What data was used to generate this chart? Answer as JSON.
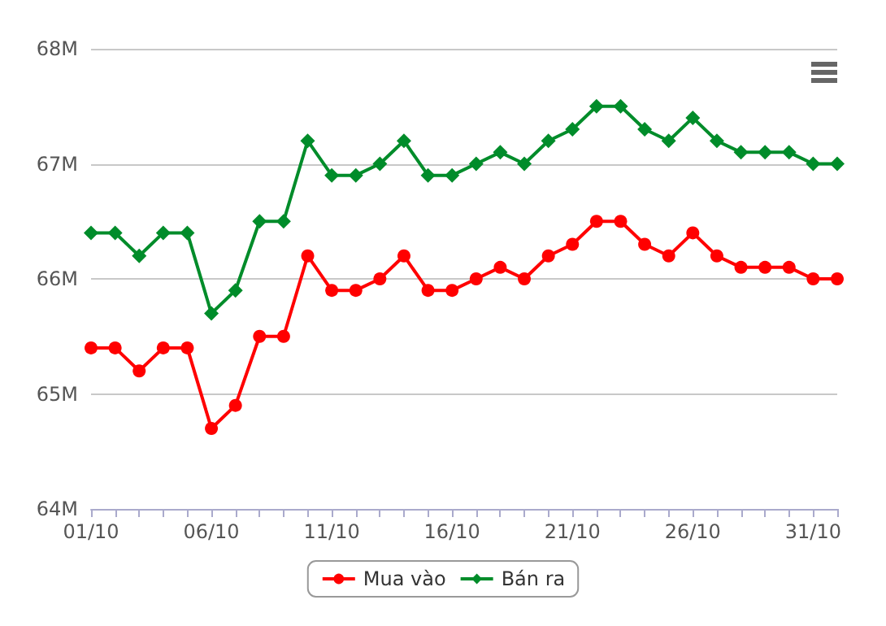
{
  "chart_data": {
    "type": "line",
    "categories": [
      "01/10",
      null,
      null,
      null,
      null,
      "06/10",
      null,
      null,
      null,
      null,
      "11/10",
      null,
      null,
      null,
      null,
      "16/10",
      null,
      null,
      null,
      null,
      "21/10",
      null,
      null,
      null,
      null,
      "26/10",
      null,
      null,
      null,
      null,
      "31/10",
      null
    ],
    "series": [
      {
        "name": "Mua vào",
        "color": "#ff0000",
        "marker": "circle",
        "values": [
          65.4,
          65.4,
          65.2,
          65.4,
          65.4,
          64.7,
          64.9,
          65.5,
          65.5,
          66.2,
          65.9,
          65.9,
          66.0,
          66.2,
          65.9,
          65.9,
          66.0,
          66.1,
          66.0,
          66.2,
          66.3,
          66.5,
          66.5,
          66.3,
          66.2,
          66.4,
          66.2,
          66.1,
          66.1,
          66.1,
          66.0,
          66.0
        ]
      },
      {
        "name": "Bán ra",
        "color": "#008c2a",
        "marker": "diamond",
        "values": [
          66.4,
          66.4,
          66.2,
          66.4,
          66.4,
          65.7,
          65.9,
          66.5,
          66.5,
          67.2,
          66.9,
          66.9,
          67.0,
          67.2,
          66.9,
          66.9,
          67.0,
          67.1,
          67.0,
          67.2,
          67.3,
          67.5,
          67.5,
          67.3,
          67.2,
          67.4,
          67.2,
          67.1,
          67.1,
          67.1,
          67.0,
          67.0
        ]
      }
    ],
    "ylim": [
      64,
      68
    ],
    "yticks": [
      {
        "value": 64,
        "label": "64M"
      },
      {
        "value": 65,
        "label": "65M"
      },
      {
        "value": 66,
        "label": "66M"
      },
      {
        "value": 67,
        "label": "67M"
      },
      {
        "value": 68,
        "label": "68M"
      }
    ],
    "grid": "y",
    "legend": "bottom",
    "line_style": "solid"
  }
}
